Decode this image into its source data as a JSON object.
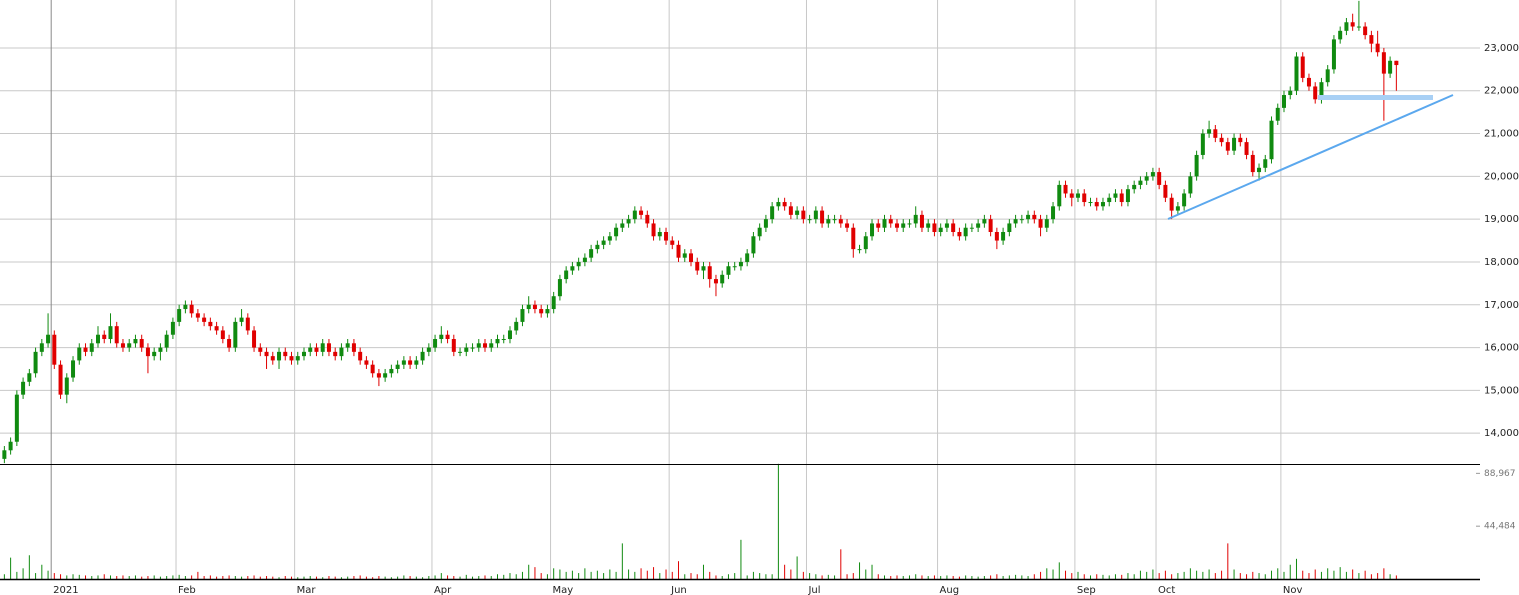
{
  "chart_data": {
    "type": "candlestick",
    "up_color": "#108a10",
    "down_color": "#e00000",
    "grid": true,
    "xlim": [
      -0.7,
      236.4
    ],
    "xticks": [
      {
        "value": 7.5,
        "label": "2021"
      },
      {
        "value": 27.5,
        "label": "Feb"
      },
      {
        "value": 46.5,
        "label": "Mar"
      },
      {
        "value": 68.5,
        "label": "Apr"
      },
      {
        "value": 87.5,
        "label": "May"
      },
      {
        "value": 106.5,
        "label": "Jun"
      },
      {
        "value": 128.5,
        "label": "Jul"
      },
      {
        "value": 149.5,
        "label": "Aug"
      },
      {
        "value": 171.5,
        "label": "Sep"
      },
      {
        "value": 184.5,
        "label": "Oct"
      },
      {
        "value": 204.5,
        "label": "Nov"
      }
    ],
    "ylim": [
      13280,
      24120
    ],
    "yticks": [
      {
        "value": 14000,
        "label": "14,000"
      },
      {
        "value": 15000,
        "label": "15,000"
      },
      {
        "value": 16000,
        "label": "16,000"
      },
      {
        "value": 17000,
        "label": "17,000"
      },
      {
        "value": 18000,
        "label": "18,000"
      },
      {
        "value": 19000,
        "label": "19,000"
      },
      {
        "value": 20000,
        "label": "20,000"
      },
      {
        "value": 21000,
        "label": "21,000"
      },
      {
        "value": 22000,
        "label": "22,000"
      },
      {
        "value": 23000,
        "label": "23,000"
      }
    ],
    "y2lim": [
      0,
      96000
    ],
    "y2ticks": [
      {
        "value": 44484,
        "label": "44,484"
      },
      {
        "value": 88967,
        "label": "88,967"
      }
    ],
    "open": [
      13400,
      13600,
      13800,
      14900,
      15200,
      15400,
      15900,
      16100,
      16300,
      15600,
      14900,
      15300,
      15700,
      16000,
      15900,
      16100,
      16300,
      16200,
      16500,
      16100,
      16000,
      16100,
      16200,
      16000,
      15800,
      15900,
      16000,
      16300,
      16600,
      16900,
      17000,
      16800,
      16700,
      16600,
      16500,
      16400,
      16200,
      16000,
      16600,
      16700,
      16400,
      16000,
      15900,
      15800,
      15700,
      15900,
      15800,
      15700,
      15800,
      15900,
      16000,
      15900,
      16100,
      15900,
      15800,
      16000,
      16100,
      15900,
      15700,
      15600,
      15400,
      15300,
      15400,
      15500,
      15600,
      15700,
      15600,
      15700,
      15900,
      16000,
      16200,
      16300,
      16200,
      15900,
      15900,
      16000,
      16000,
      16100,
      16000,
      16100,
      16200,
      16200,
      16400,
      16600,
      16900,
      17000,
      16900,
      16800,
      16900,
      17200,
      17600,
      17800,
      17900,
      18000,
      18100,
      18300,
      18400,
      18500,
      18600,
      18800,
      18900,
      19000,
      19200,
      19100,
      18900,
      18600,
      18700,
      18500,
      18400,
      18100,
      18200,
      18000,
      17800,
      17900,
      17600,
      17500,
      17700,
      17900,
      17900,
      18000,
      18200,
      18600,
      18800,
      19000,
      19300,
      19400,
      19300,
      19100,
      19200,
      19000,
      19000,
      19200,
      18900,
      19000,
      19000,
      18900,
      18800,
      18300,
      18300,
      18600,
      18900,
      18800,
      19000,
      18900,
      18800,
      18900,
      18900,
      19100,
      18800,
      18900,
      18700,
      18800,
      18900,
      18700,
      18600,
      18800,
      18800,
      18900,
      19000,
      18700,
      18500,
      18700,
      18900,
      19000,
      19000,
      19100,
      19000,
      18800,
      19000,
      19300,
      19800,
      19600,
      19500,
      19600,
      19400,
      19400,
      19300,
      19400,
      19500,
      19600,
      19400,
      19700,
      19800,
      19900,
      20000,
      20100,
      19800,
      19500,
      19200,
      19300,
      19600,
      20000,
      20500,
      21000,
      21100,
      20900,
      20800,
      20600,
      20900,
      20800,
      20500,
      20100,
      20200,
      20400,
      21300,
      21600,
      21900,
      22000,
      22800,
      22300,
      22100,
      21800,
      22200,
      22500,
      23200,
      23400,
      23600,
      23500,
      23500,
      23300,
      23100,
      22900,
      22400,
      22700
    ],
    "high": [
      13700,
      13900,
      15000,
      15300,
      15500,
      16000,
      16200,
      16800,
      16400,
      15700,
      15400,
      15800,
      16100,
      16100,
      16200,
      16500,
      16400,
      16800,
      16600,
      16200,
      16200,
      16300,
      16300,
      16100,
      16000,
      16100,
      16400,
      16700,
      17000,
      17100,
      17100,
      16900,
      16800,
      16700,
      16600,
      16500,
      16300,
      16700,
      16900,
      16800,
      16500,
      16100,
      16000,
      15900,
      16000,
      16000,
      15900,
      15900,
      16000,
      16100,
      16100,
      16200,
      16200,
      16000,
      16100,
      16200,
      16200,
      16000,
      15800,
      15700,
      15500,
      15500,
      15600,
      15700,
      15800,
      15800,
      15800,
      16000,
      16100,
      16300,
      16500,
      16400,
      16300,
      16000,
      16100,
      16100,
      16200,
      16200,
      16200,
      16300,
      16300,
      16500,
      16700,
      17000,
      17200,
      17100,
      17000,
      17000,
      17300,
      17700,
      17900,
      18000,
      18100,
      18200,
      18400,
      18500,
      18600,
      18700,
      18900,
      19000,
      19100,
      19300,
      19300,
      19200,
      19000,
      18800,
      18800,
      18600,
      18500,
      18300,
      18300,
      18100,
      18000,
      18000,
      17700,
      17800,
      18000,
      18000,
      18100,
      18300,
      18700,
      18900,
      19100,
      19400,
      19500,
      19500,
      19400,
      19300,
      19300,
      19100,
      19300,
      19300,
      19100,
      19100,
      19100,
      19000,
      18900,
      18400,
      18700,
      19000,
      19000,
      19100,
      19100,
      19000,
      19000,
      19000,
      19300,
      19200,
      19000,
      19000,
      18900,
      19000,
      19000,
      18800,
      18900,
      18900,
      19000,
      19100,
      19100,
      18800,
      18800,
      19000,
      19100,
      19100,
      19200,
      19200,
      19100,
      19100,
      19400,
      19900,
      19900,
      19700,
      19700,
      19700,
      19500,
      19500,
      19500,
      19600,
      19700,
      19700,
      19800,
      19900,
      20000,
      20100,
      20200,
      20200,
      19900,
      19600,
      19400,
      19700,
      20100,
      20600,
      21100,
      21300,
      21200,
      21000,
      20900,
      21000,
      21000,
      20900,
      20600,
      20300,
      20500,
      21400,
      21700,
      22000,
      22100,
      22900,
      22900,
      22400,
      22200,
      22300,
      22600,
      23300,
      23500,
      23700,
      23800,
      24100,
      23600,
      23400,
      23400,
      23000,
      22800,
      22700
    ],
    "low": [
      13300,
      13500,
      13700,
      14800,
      15100,
      15300,
      15800,
      16000,
      15500,
      14800,
      14700,
      15200,
      15600,
      15800,
      15800,
      16000,
      16100,
      16100,
      16000,
      15900,
      15900,
      16000,
      15900,
      15400,
      15700,
      15700,
      15900,
      16200,
      16500,
      16800,
      16700,
      16600,
      16500,
      16400,
      16300,
      16100,
      15900,
      15900,
      16500,
      16300,
      15900,
      15800,
      15500,
      15600,
      15500,
      15700,
      15600,
      15600,
      15700,
      15800,
      15800,
      15800,
      15800,
      15700,
      15700,
      15900,
      15800,
      15600,
      15500,
      15300,
      15100,
      15200,
      15300,
      15400,
      15500,
      15500,
      15500,
      15600,
      15800,
      15900,
      16100,
      16100,
      15800,
      15800,
      15800,
      15900,
      15900,
      15900,
      15900,
      16000,
      16100,
      16100,
      16300,
      16500,
      16800,
      16800,
      16700,
      16700,
      16800,
      17100,
      17500,
      17700,
      17800,
      17900,
      18000,
      18200,
      18300,
      18400,
      18500,
      18700,
      18800,
      18900,
      19000,
      18800,
      18500,
      18500,
      18400,
      18300,
      18000,
      18000,
      17900,
      17700,
      17600,
      17400,
      17200,
      17400,
      17600,
      17800,
      17800,
      17900,
      18100,
      18500,
      18700,
      18900,
      19200,
      19200,
      19000,
      19000,
      18900,
      18900,
      18900,
      18800,
      18800,
      18900,
      18800,
      18700,
      18100,
      18200,
      18200,
      18500,
      18700,
      18700,
      18800,
      18700,
      18700,
      18800,
      18800,
      18700,
      18700,
      18600,
      18600,
      18700,
      18600,
      18500,
      18500,
      18700,
      18700,
      18800,
      18600,
      18300,
      18400,
      18600,
      18800,
      18900,
      18900,
      18900,
      18600,
      18700,
      18900,
      19200,
      19500,
      19300,
      19400,
      19300,
      19300,
      19200,
      19200,
      19300,
      19400,
      19300,
      19300,
      19600,
      19700,
      19800,
      19900,
      19700,
      19400,
      19000,
      19100,
      19200,
      19500,
      19900,
      20400,
      20900,
      20800,
      20700,
      20500,
      20500,
      20700,
      20400,
      20000,
      19900,
      20100,
      20300,
      21200,
      21500,
      21800,
      21900,
      22200,
      22000,
      21700,
      21700,
      22100,
      22400,
      23100,
      23300,
      23400,
      23400,
      23200,
      22900,
      22800,
      21300,
      22300,
      22000
    ],
    "close": [
      13600,
      13800,
      14900,
      15200,
      15400,
      15900,
      16100,
      16300,
      15600,
      14900,
      15300,
      15700,
      16000,
      15900,
      16100,
      16300,
      16200,
      16500,
      16100,
      16000,
      16100,
      16200,
      16000,
      15800,
      15900,
      16000,
      16300,
      16600,
      16900,
      17000,
      16800,
      16700,
      16600,
      16500,
      16400,
      16200,
      16000,
      16600,
      16700,
      16400,
      16000,
      15900,
      15800,
      15700,
      15900,
      15800,
      15700,
      15800,
      15900,
      16000,
      15900,
      16100,
      15900,
      15800,
      16000,
      16100,
      15900,
      15700,
      15600,
      15400,
      15300,
      15400,
      15500,
      15600,
      15700,
      15600,
      15700,
      15900,
      16000,
      16200,
      16300,
      16200,
      15900,
      15900,
      16000,
      16000,
      16100,
      16000,
      16100,
      16200,
      16200,
      16400,
      16600,
      16900,
      17000,
      16900,
      16800,
      16900,
      17200,
      17600,
      17800,
      17900,
      18000,
      18100,
      18300,
      18400,
      18500,
      18600,
      18800,
      18900,
      19000,
      19200,
      19100,
      18900,
      18600,
      18700,
      18500,
      18400,
      18100,
      18200,
      18000,
      17800,
      17900,
      17600,
      17500,
      17700,
      17900,
      17900,
      18000,
      18200,
      18600,
      18800,
      19000,
      19300,
      19400,
      19300,
      19100,
      19200,
      19000,
      19000,
      19200,
      18900,
      19000,
      19000,
      18900,
      18800,
      18300,
      18300,
      18600,
      18900,
      18800,
      19000,
      18900,
      18800,
      18900,
      18900,
      19100,
      18800,
      18900,
      18700,
      18800,
      18900,
      18700,
      18600,
      18800,
      18800,
      18900,
      19000,
      18700,
      18500,
      18700,
      18900,
      19000,
      19000,
      19100,
      19000,
      18800,
      19000,
      19300,
      19800,
      19600,
      19500,
      19600,
      19400,
      19400,
      19300,
      19400,
      19500,
      19600,
      19400,
      19700,
      19800,
      19900,
      20000,
      20100,
      19800,
      19500,
      19200,
      19300,
      19600,
      20000,
      20500,
      21000,
      21100,
      20900,
      20800,
      20600,
      20900,
      20800,
      20500,
      20100,
      20200,
      20400,
      21300,
      21600,
      21900,
      22000,
      22800,
      22300,
      22100,
      21800,
      22200,
      22500,
      23200,
      23400,
      23600,
      23500,
      23500,
      23300,
      23100,
      22900,
      22400,
      22700,
      22600
    ],
    "volume": [
      4000,
      18000,
      6000,
      9000,
      20000,
      5000,
      12000,
      7000,
      5000,
      4000,
      3000,
      4000,
      3500,
      3000,
      2500,
      3000,
      4000,
      3000,
      2500,
      3000,
      2500,
      3000,
      2000,
      2500,
      3000,
      2000,
      2500,
      3000,
      3500,
      2500,
      3000,
      6000,
      2500,
      3000,
      2000,
      2500,
      3000,
      2500,
      2000,
      2500,
      3000,
      2000,
      2500,
      2000,
      1500,
      2500,
      2000,
      1500,
      2000,
      2500,
      2000,
      1500,
      2500,
      2000,
      1500,
      2000,
      2500,
      3000,
      2000,
      1500,
      2500,
      2000,
      1500,
      2000,
      3000,
      2500,
      2000,
      1500,
      2500,
      3000,
      5000,
      3000,
      2500,
      2000,
      3500,
      2000,
      2500,
      3000,
      2500,
      4000,
      3500,
      5000,
      4000,
      6000,
      12000,
      10000,
      5000,
      4000,
      9000,
      8000,
      6000,
      7000,
      5000,
      9000,
      6000,
      7000,
      5000,
      8000,
      6000,
      30000,
      8000,
      6000,
      9000,
      7000,
      10000,
      5000,
      8000,
      6000,
      15000,
      4000,
      5000,
      4000,
      12000,
      6000,
      3000,
      2500,
      4000,
      5000,
      33000,
      3000,
      6000,
      5000,
      4000,
      4000,
      97000,
      12000,
      8000,
      19000,
      6000,
      5000,
      4000,
      3000,
      3500,
      3000,
      25000,
      4000,
      5000,
      14000,
      8000,
      12000,
      4000,
      3000,
      2500,
      3000,
      2500,
      3000,
      4000,
      3000,
      2500,
      3000,
      2500,
      3000,
      2500,
      2000,
      3000,
      2500,
      2000,
      2500,
      3000,
      4000,
      2500,
      3000,
      3500,
      3000,
      2500,
      4000,
      6000,
      9000,
      8000,
      14000,
      7000,
      5000,
      6000,
      4000,
      3000,
      4000,
      3500,
      3000,
      4000,
      3500,
      5000,
      4000,
      7000,
      6000,
      8000,
      5000,
      7000,
      4000,
      5000,
      6000,
      9000,
      7000,
      6000,
      8000,
      5000,
      7000,
      30000,
      8000,
      5000,
      4000,
      6000,
      5000,
      4000,
      7000,
      9000,
      6000,
      12000,
      17000,
      7000,
      5000,
      8000,
      6000,
      9000,
      7000,
      10000,
      6000,
      8000,
      5000,
      7000,
      4000,
      5000,
      9000,
      4000,
      3000
    ]
  }
}
